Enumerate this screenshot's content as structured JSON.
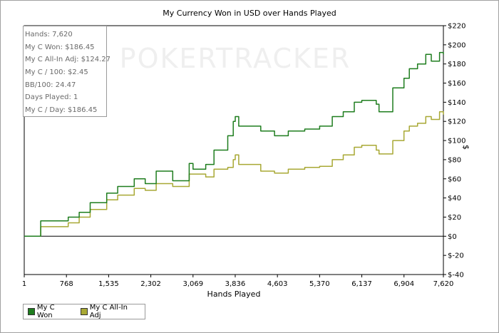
{
  "chart_data": {
    "type": "line",
    "title": "My Currency Won in USD over Hands Played",
    "xlabel": "Hands Played",
    "ylabel": "$",
    "xlim": [
      1,
      7620
    ],
    "ylim": [
      -40,
      220
    ],
    "x_ticks": [
      "1",
      "768",
      "1,535",
      "2,302",
      "3,069",
      "3,836",
      "4,603",
      "5,370",
      "6,137",
      "6,904",
      "7,620"
    ],
    "x_tick_values": [
      1,
      768,
      1535,
      2302,
      3069,
      3836,
      4603,
      5370,
      6137,
      6904,
      7620
    ],
    "y_ticks": [
      "$220",
      "$200",
      "$180",
      "$160",
      "$140",
      "$120",
      "$100",
      "$80",
      "$60",
      "$40",
      "$20",
      "$0",
      "$-20",
      "$-40"
    ],
    "y_tick_values": [
      220,
      200,
      180,
      160,
      140,
      120,
      100,
      80,
      60,
      40,
      20,
      0,
      -20,
      -40
    ],
    "grid": false,
    "legend_position": "bottom-left",
    "watermark": "POKERTRACKER",
    "series": [
      {
        "name": "My C Won",
        "color": "#1e7d1e",
        "x": [
          1,
          250,
          300,
          500,
          800,
          1000,
          1200,
          1500,
          1700,
          2000,
          2200,
          2400,
          2700,
          3000,
          3069,
          3300,
          3450,
          3700,
          3800,
          3836,
          3900,
          4100,
          4300,
          4500,
          4550,
          4800,
          5100,
          5370,
          5600,
          5800,
          6000,
          6137,
          6400,
          6450,
          6700,
          6904,
          7000,
          7150,
          7300,
          7400,
          7550,
          7620
        ],
        "values": [
          0,
          0,
          16,
          16,
          20,
          25,
          35,
          45,
          52,
          60,
          55,
          68,
          58,
          76,
          70,
          75,
          90,
          105,
          120,
          125,
          115,
          115,
          110,
          110,
          105,
          110,
          112,
          115,
          125,
          130,
          140,
          142,
          138,
          130,
          155,
          165,
          175,
          180,
          190,
          183,
          192,
          190
        ]
      },
      {
        "name": "My C All-In Adj",
        "color": "#a8a834",
        "x": [
          1,
          250,
          300,
          500,
          800,
          1000,
          1200,
          1500,
          1700,
          2000,
          2200,
          2400,
          2700,
          3000,
          3069,
          3300,
          3450,
          3700,
          3800,
          3836,
          3900,
          4100,
          4300,
          4500,
          4550,
          4800,
          5100,
          5370,
          5600,
          5800,
          6000,
          6137,
          6400,
          6450,
          6700,
          6904,
          7000,
          7150,
          7300,
          7400,
          7550,
          7620
        ],
        "values": [
          0,
          0,
          10,
          10,
          14,
          20,
          28,
          38,
          43,
          50,
          48,
          55,
          52,
          65,
          65,
          62,
          70,
          72,
          80,
          85,
          75,
          75,
          68,
          68,
          66,
          70,
          72,
          73,
          80,
          85,
          93,
          95,
          90,
          86,
          100,
          110,
          115,
          118,
          125,
          122,
          130,
          127
        ]
      }
    ]
  },
  "stats_box": [
    "Hands: 7,620",
    "My C Won: $186.45",
    "My C All-In Adj: $124.27",
    "My C / 100: $2.45",
    "BB/100: 24.47",
    "Days Played: 1",
    "My C / Day: $186.45"
  ]
}
